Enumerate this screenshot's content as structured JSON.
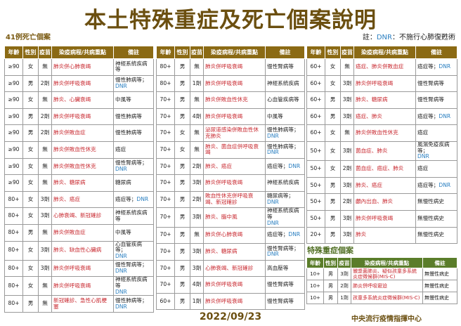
{
  "title": "本土特殊重症及死亡個案說明",
  "subtitle": "41例死亡個案",
  "note": {
    "prefix": "註：",
    "dnr": "DNR",
    "text": "：不施行心肺復甦術"
  },
  "headers": [
    "年齡",
    "性別",
    "疫苗",
    "染疫病程/共病重點",
    "備註"
  ],
  "dnr_label": "DNR",
  "colors": {
    "header": "#8b6a14",
    "special_header": "#5a7d2a",
    "red": "#c8282f",
    "dnr": "#2a7fc1"
  },
  "tables": [
    [
      [
        "≥90",
        "女",
        "無",
        "肺炎併心肺衰竭",
        "神經系統疾病等",
        ""
      ],
      [
        "≥90",
        "男",
        "2劑",
        "肺炎併呼吸衰竭",
        "慢性肺病等；",
        "DNR"
      ],
      [
        "≥90",
        "女",
        "無",
        "肺炎、心臟衰竭",
        "中風等",
        ""
      ],
      [
        "≥90",
        "男",
        "2劑",
        "肺炎併呼吸衰竭",
        "慢性肺病等",
        ""
      ],
      [
        "≥90",
        "男",
        "2劑",
        "肺炎併敗血症",
        "慢性肺病等",
        ""
      ],
      [
        "≥90",
        "女",
        "無",
        "肺炎併敗血性休克",
        "癌症",
        ""
      ],
      [
        "≥90",
        "女",
        "無",
        "肺炎併敗血性休克",
        "慢性腎病等；",
        "DNR"
      ],
      [
        "≥90",
        "女",
        "無",
        "肺炎、糖尿病",
        "糖尿病",
        ""
      ],
      [
        "80+",
        "女",
        "3劑",
        "肺炎、癌症",
        "癌症等；",
        "DNR"
      ],
      [
        "80+",
        "女",
        "3劑",
        "心肺衰竭、新冠確診",
        "神經系統疾病等",
        ""
      ],
      [
        "80+",
        "男",
        "無",
        "肺炎併敗血症",
        "中風等",
        ""
      ],
      [
        "80+",
        "女",
        "3劑",
        "肺炎、缺血性心臟病",
        "心血管疾病等；",
        "DNR"
      ],
      [
        "80+",
        "女",
        "3劑",
        "肺炎併呼吸衰竭",
        "慢性腎病等；",
        "DNR"
      ],
      [
        "80+",
        "女",
        "無",
        "肺炎併呼吸衰竭",
        "神經系統疾病等",
        "DNR"
      ],
      [
        "80+",
        "男",
        "無",
        "新冠確診、急性心肌梗塞",
        "慢性肺病等；",
        "DNR"
      ]
    ],
    [
      [
        "80+",
        "男",
        "無",
        "肺炎併呼吸衰竭",
        "慢性腎病等",
        ""
      ],
      [
        "80+",
        "男",
        "1劑",
        "肺炎併呼吸衰竭",
        "神經系統疾病",
        ""
      ],
      [
        "70+",
        "男",
        "無",
        "肺炎併敗血性休克",
        "心血管疾病等",
        ""
      ],
      [
        "70+",
        "男",
        "4劑",
        "肺炎併呼吸衰竭",
        "中風等",
        ""
      ],
      [
        "70+",
        "女",
        "無",
        "泌尿道感染併敗血性休克肺炎",
        "慢性肺病等；",
        "DNR"
      ],
      [
        "70+",
        "女",
        "無",
        "肺炎、菌血症併呼吸衰竭",
        "慢性肺病等；",
        "DNR"
      ],
      [
        "70+",
        "男",
        "2劑",
        "肺炎、癌症",
        "癌症等；",
        "DNR"
      ],
      [
        "70+",
        "男",
        "3劑",
        "肺炎併呼吸衰竭",
        "神經系統疾病",
        ""
      ],
      [
        "70+",
        "男",
        "2劑",
        "敗血性休克併呼吸衰竭、新冠確診",
        "糖尿病等；",
        "DNR"
      ],
      [
        "70+",
        "男",
        "3劑",
        "肺炎、腦中風",
        "神經系統疾病等",
        "DNR"
      ],
      [
        "70+",
        "男",
        "無",
        "肺炎併心肺衰竭",
        "癌症等；",
        "DNR"
      ],
      [
        "70+",
        "男",
        "3劑",
        "肺炎、糖尿病",
        "慢性腎病等；",
        "DNR"
      ],
      [
        "70+",
        "男",
        "3劑",
        "心肺衰竭、新冠確診",
        "高血壓等",
        ""
      ],
      [
        "70+",
        "男",
        "4劑",
        "肺炎併呼吸衰竭",
        "慢性腎病等",
        ""
      ],
      [
        "60+",
        "男",
        "1劑",
        "肺炎併呼吸衰竭",
        "慢性腎病等",
        ""
      ]
    ],
    [
      [
        "60+",
        "女",
        "無",
        "癌症、肺炎併敗血症",
        "癌症等；",
        "DNR"
      ],
      [
        "60+",
        "女",
        "3劑",
        "肺炎併呼吸衰竭",
        "慢性腎病等",
        ""
      ],
      [
        "60+",
        "男",
        "3劑",
        "肺炎、糖尿病",
        "慢性腎病等",
        ""
      ],
      [
        "60+",
        "男",
        "3劑",
        "癌症、肺炎",
        "癌症等；",
        "DNR"
      ],
      [
        "60+",
        "女",
        "無",
        "肺炎併敗血性休克",
        "癌症",
        ""
      ],
      [
        "50+",
        "女",
        "3劑",
        "菌血症、肺炎",
        "風濕免疫疾病等；",
        "DNR"
      ],
      [
        "50+",
        "女",
        "2劑",
        "菌血症、癌症、肺炎",
        "癌症",
        ""
      ],
      [
        "50+",
        "男",
        "3劑",
        "肺炎、癌症",
        "癌症等；",
        "DNR"
      ],
      [
        "50+",
        "男",
        "2劑",
        "顱內出血、肺炎",
        "無慢性病史",
        ""
      ],
      [
        "50+",
        "男",
        "3劑",
        "肺炎併呼吸衰竭",
        "無慢性病史",
        ""
      ],
      [
        "20+",
        "男",
        "3劑",
        "肺炎",
        "無慢性病史",
        ""
      ]
    ]
  ],
  "special": {
    "title": "特殊重症個案",
    "rows": [
      [
        "10+",
        "男",
        "3劑",
        "黴漿菌肺炎、疑似孩童多系統炎症徵候群(MIS-C)",
        "無慢性病史",
        ""
      ],
      [
        "10+",
        "男",
        "2劑",
        "肺炎併呼吸窘迫",
        "無慢性病史",
        ""
      ],
      [
        "10+",
        "男",
        "1劑",
        "孩童多系統炎症徵候群(MIS-C)",
        "無慢性病史",
        ""
      ]
    ]
  },
  "date": "2022/09/23",
  "org": "中央流行疫情指揮中心"
}
